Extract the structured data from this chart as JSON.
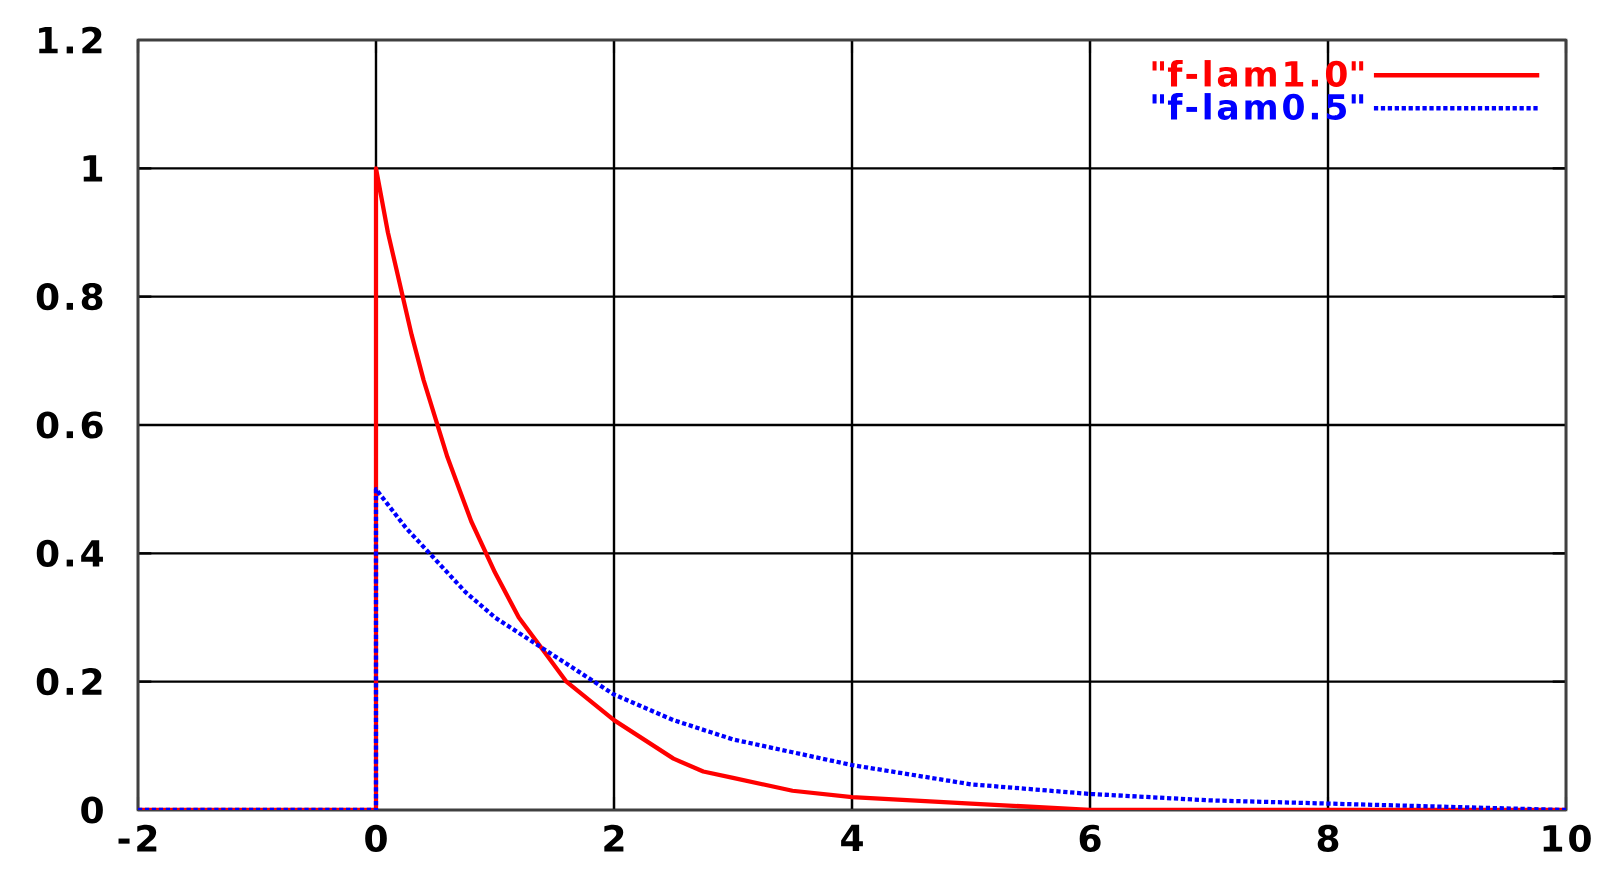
{
  "chart_data": {
    "type": "line",
    "series": [
      {
        "name": "\"f-lam1.0\"",
        "color": "#ff0000",
        "line_style": "solid",
        "x": [
          -2,
          0,
          0,
          0.1,
          0.2,
          0.3,
          0.4,
          0.5,
          0.6,
          0.7,
          0.8,
          0.9,
          1,
          1.2,
          1.4,
          1.6,
          1.8,
          2,
          2.25,
          2.5,
          2.75,
          3,
          3.5,
          4,
          5,
          6,
          8,
          10
        ],
        "values": [
          0,
          0,
          1,
          0.9,
          0.82,
          0.74,
          0.67,
          0.61,
          0.55,
          0.5,
          0.45,
          0.41,
          0.37,
          0.3,
          0.25,
          0.2,
          0.17,
          0.14,
          0.11,
          0.08,
          0.06,
          0.05,
          0.03,
          0.02,
          0.01,
          0,
          0,
          0
        ]
      },
      {
        "name": "\"f-lam0.5\"",
        "color": "#0000ff",
        "line_style": "dotted",
        "x": [
          -2,
          0,
          0,
          0.25,
          0.5,
          0.75,
          1,
          1.25,
          1.5,
          1.75,
          2,
          2.5,
          3,
          3.5,
          4,
          5,
          6,
          7,
          8,
          9,
          10
        ],
        "values": [
          0,
          0,
          0.5,
          0.44,
          0.39,
          0.34,
          0.3,
          0.27,
          0.24,
          0.21,
          0.18,
          0.14,
          0.11,
          0.09,
          0.07,
          0.04,
          0.025,
          0.015,
          0.01,
          0.005,
          0
        ]
      }
    ],
    "xlim": [
      -2,
      10
    ],
    "ylim": [
      0,
      1.2
    ],
    "xticks": [
      -2,
      0,
      2,
      4,
      6,
      8,
      10
    ],
    "yticks": [
      0,
      0.2,
      0.4,
      0.6,
      0.8,
      1,
      1.2
    ],
    "grid": true,
    "legend": "top right"
  }
}
